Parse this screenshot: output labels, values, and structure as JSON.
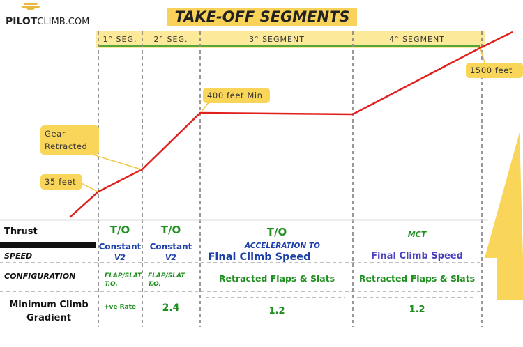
{
  "header": {
    "logo": [
      "PILOT",
      "CLIMB.COM"
    ],
    "title": "TAKE-OFF SEGMENTS"
  },
  "segments": [
    "1° SEG.",
    "2° SEG.",
    "3° SEGMENT",
    "4° SEGMENT"
  ],
  "callouts": [
    [
      "Gear",
      "Retracted"
    ],
    [
      "35 feet"
    ],
    [
      "400 feet Min"
    ],
    [
      "1500 feet"
    ]
  ],
  "table": {
    "rows": [
      {
        "label": [
          "Thrust"
        ],
        "cells": [
          [
            "T/O"
          ],
          [
            "T/O"
          ],
          [
            "T/O"
          ],
          [
            "MCT"
          ]
        ]
      },
      {
        "label": [
          "SPEED"
        ],
        "cells": [
          [
            "Constant",
            "V2"
          ],
          [
            "Constant",
            "V2"
          ],
          [
            "ACCELERATION TO",
            "Final Climb Speed"
          ],
          [
            "Final Climb Speed"
          ]
        ]
      },
      {
        "label": [
          "CONFIGURATION"
        ],
        "cells": [
          [
            "FLAP/SLAT",
            "T.O."
          ],
          [
            "FLAP/SLAT",
            "T.O."
          ],
          [
            "Retracted Flaps & Slats"
          ],
          [
            "Retracted Flaps & Slats"
          ]
        ]
      },
      {
        "label": [
          "Minimum Climb",
          "Gradient"
        ],
        "cells": [
          [
            "+ve Rate"
          ],
          [
            "2.4"
          ],
          [
            "1.2"
          ],
          [
            "1.2"
          ]
        ]
      }
    ]
  }
}
